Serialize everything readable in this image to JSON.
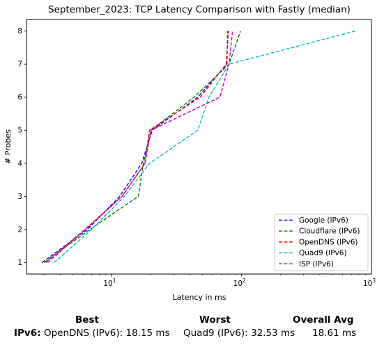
{
  "chart_data": {
    "type": "line",
    "title": "September_2023: TCP Latency Comparison with Fastly (median)",
    "xlabel": "Latency in ms",
    "ylabel": "# Probes",
    "xscale": "log",
    "xlim": [
      2.2,
      1000
    ],
    "ylim": [
      0.65,
      8.35
    ],
    "xtick_labels": [
      "10^1",
      "10^2",
      "10^3"
    ],
    "ytick_labels": [
      "1",
      "2",
      "3",
      "4",
      "5",
      "6",
      "7",
      "8"
    ],
    "legend_position": "lower right",
    "series": [
      {
        "name": "Google (IPv6)",
        "color": "#0000ff",
        "points": [
          [
            2.9,
            1
          ],
          [
            6.5,
            2
          ],
          [
            11.5,
            3
          ],
          [
            17,
            4
          ],
          [
            20.5,
            5
          ],
          [
            46,
            6
          ],
          [
            77,
            7
          ],
          [
            78,
            8
          ]
        ]
      },
      {
        "name": "Cloudflare (IPv6)",
        "color": "#008000",
        "points": [
          [
            3.0,
            1
          ],
          [
            6.8,
            2
          ],
          [
            16,
            3
          ],
          [
            17.5,
            4
          ],
          [
            20,
            5
          ],
          [
            43,
            6
          ],
          [
            80,
            7
          ],
          [
            98,
            8
          ]
        ]
      },
      {
        "name": "OpenDNS (IPv6)",
        "color": "#ff0000",
        "points": [
          [
            3.1,
            1
          ],
          [
            6.2,
            2
          ],
          [
            12,
            3
          ],
          [
            18,
            4
          ],
          [
            19.5,
            5
          ],
          [
            48,
            6
          ],
          [
            76,
            7
          ],
          [
            79,
            8
          ]
        ]
      },
      {
        "name": "Quad9 (IPv6)",
        "color": "#00bfbf",
        "points": [
          [
            3.6,
            1
          ],
          [
            7.0,
            2
          ],
          [
            12.5,
            3
          ],
          [
            19.5,
            4
          ],
          [
            46,
            5
          ],
          [
            56,
            6
          ],
          [
            80,
            7
          ],
          [
            750,
            8
          ]
        ]
      },
      {
        "name": "ISP (IPv6)",
        "color": "#bf00bf",
        "points": [
          [
            3.2,
            1
          ],
          [
            6.3,
            2
          ],
          [
            12,
            3
          ],
          [
            18,
            4
          ],
          [
            20,
            5
          ],
          [
            68,
            6
          ],
          [
            80,
            7
          ],
          [
            85,
            8
          ]
        ]
      }
    ]
  },
  "summary": {
    "best_header": "Best",
    "worst_header": "Worst",
    "avg_header": "Overall Avg",
    "row_label": "IPv6:",
    "best_value": "OpenDNS (IPv6): 18.15 ms",
    "worst_value": "Quad9 (IPv6): 32.53 ms",
    "avg_value": "18.61 ms"
  }
}
